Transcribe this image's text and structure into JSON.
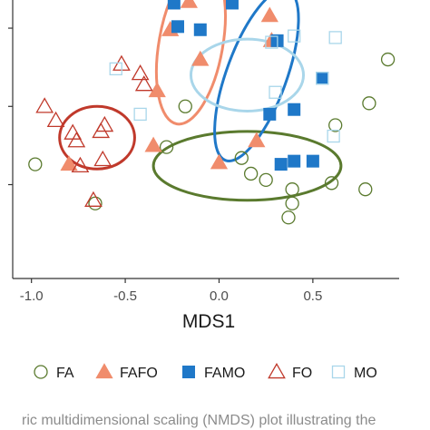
{
  "chart_data": {
    "type": "scatter",
    "title": "",
    "xlabel": "MDS1",
    "ylabel": "",
    "xlim": [
      -1.1,
      0.96
    ],
    "ylim": [
      -0.6,
      1.18
    ],
    "x_ticks": [
      -1.0,
      -0.5,
      0.0,
      0.5
    ],
    "x_tick_labels": [
      "-1.0",
      "-0.5",
      "0.0",
      "0.5"
    ],
    "y_ticks": [
      0,
      0.5,
      1.0
    ],
    "grid": false,
    "legend_position": "bottom",
    "colors": {
      "FA": "#5a7a2e",
      "FAFO": "#f08c6c",
      "FAMO": "#1f78c8",
      "FO": "#c0392b",
      "MO": "#a9d6ea"
    },
    "series": [
      {
        "name": "FA",
        "marker": "circle-open",
        "points": [
          [
            -0.98,
            0.13
          ],
          [
            -0.66,
            -0.12
          ],
          [
            -0.28,
            0.24
          ],
          [
            -0.18,
            0.5
          ],
          [
            0.12,
            0.17
          ],
          [
            0.17,
            0.07
          ],
          [
            0.25,
            0.03
          ],
          [
            0.39,
            -0.03
          ],
          [
            0.39,
            -0.12
          ],
          [
            0.37,
            -0.21
          ],
          [
            0.6,
            0.01
          ],
          [
            0.62,
            0.38
          ],
          [
            0.78,
            -0.03
          ],
          [
            0.8,
            0.52
          ],
          [
            0.9,
            0.8
          ]
        ]
      },
      {
        "name": "FAFO",
        "marker": "triangle-filled",
        "points": [
          [
            -0.8,
            0.13
          ],
          [
            -0.35,
            0.25
          ],
          [
            -0.33,
            0.6
          ],
          [
            -0.26,
            0.99
          ],
          [
            -0.16,
            1.17
          ],
          [
            -0.1,
            0.8
          ],
          [
            0.0,
            0.14
          ],
          [
            0.2,
            0.28
          ],
          [
            0.27,
            1.08
          ],
          [
            0.28,
            0.92
          ]
        ]
      },
      {
        "name": "FAMO",
        "marker": "square-filled",
        "points": [
          [
            -0.24,
            1.16
          ],
          [
            -0.22,
            1.01
          ],
          [
            -0.1,
            0.99
          ],
          [
            0.07,
            1.16
          ],
          [
            0.27,
            0.45
          ],
          [
            0.31,
            0.92
          ],
          [
            0.33,
            0.13
          ],
          [
            0.4,
            0.48
          ],
          [
            0.4,
            0.15
          ],
          [
            0.5,
            0.15
          ],
          [
            0.55,
            0.68
          ]
        ]
      },
      {
        "name": "FO",
        "marker": "triangle-open",
        "points": [
          [
            -0.93,
            0.5
          ],
          [
            -0.87,
            0.41
          ],
          [
            -0.78,
            0.33
          ],
          [
            -0.76,
            0.28
          ],
          [
            -0.74,
            0.12
          ],
          [
            -0.67,
            -0.1
          ],
          [
            -0.63,
            0.34
          ],
          [
            -0.61,
            0.38
          ],
          [
            -0.52,
            0.77
          ],
          [
            -0.42,
            0.71
          ],
          [
            -0.4,
            0.64
          ],
          [
            -0.62,
            0.16
          ]
        ]
      },
      {
        "name": "MO",
        "marker": "square-open",
        "points": [
          [
            -0.55,
            0.74
          ],
          [
            -0.42,
            0.45
          ],
          [
            0.28,
            0.91
          ],
          [
            0.3,
            0.59
          ],
          [
            0.4,
            0.95
          ],
          [
            0.55,
            0.68
          ],
          [
            0.61,
            0.31
          ],
          [
            0.62,
            0.94
          ]
        ]
      }
    ],
    "ellipses": [
      {
        "name": "FA",
        "cx": 0.15,
        "cy": 0.12,
        "rx": 0.5,
        "ry": 0.22,
        "angle": 0,
        "width": 3
      },
      {
        "name": "FAFO",
        "cx": -0.15,
        "cy": 0.9,
        "rx": 0.17,
        "ry": 0.52,
        "angle": 10,
        "width": 3
      },
      {
        "name": "FAMO",
        "cx": 0.2,
        "cy": 0.7,
        "rx": 0.16,
        "ry": 0.58,
        "angle": 20,
        "width": 3
      },
      {
        "name": "FO",
        "cx": -0.65,
        "cy": 0.3,
        "rx": 0.2,
        "ry": 0.2,
        "angle": 0,
        "width": 3
      },
      {
        "name": "MO",
        "cx": 0.15,
        "cy": 0.7,
        "rx": 0.3,
        "ry": 0.23,
        "angle": 0,
        "width": 3
      }
    ]
  },
  "legend": {
    "items": [
      "FA",
      "FAFO",
      "FAMO",
      "FO",
      "MO"
    ]
  },
  "caption": "ric multidimensional scaling (NMDS) plot illustrating the"
}
